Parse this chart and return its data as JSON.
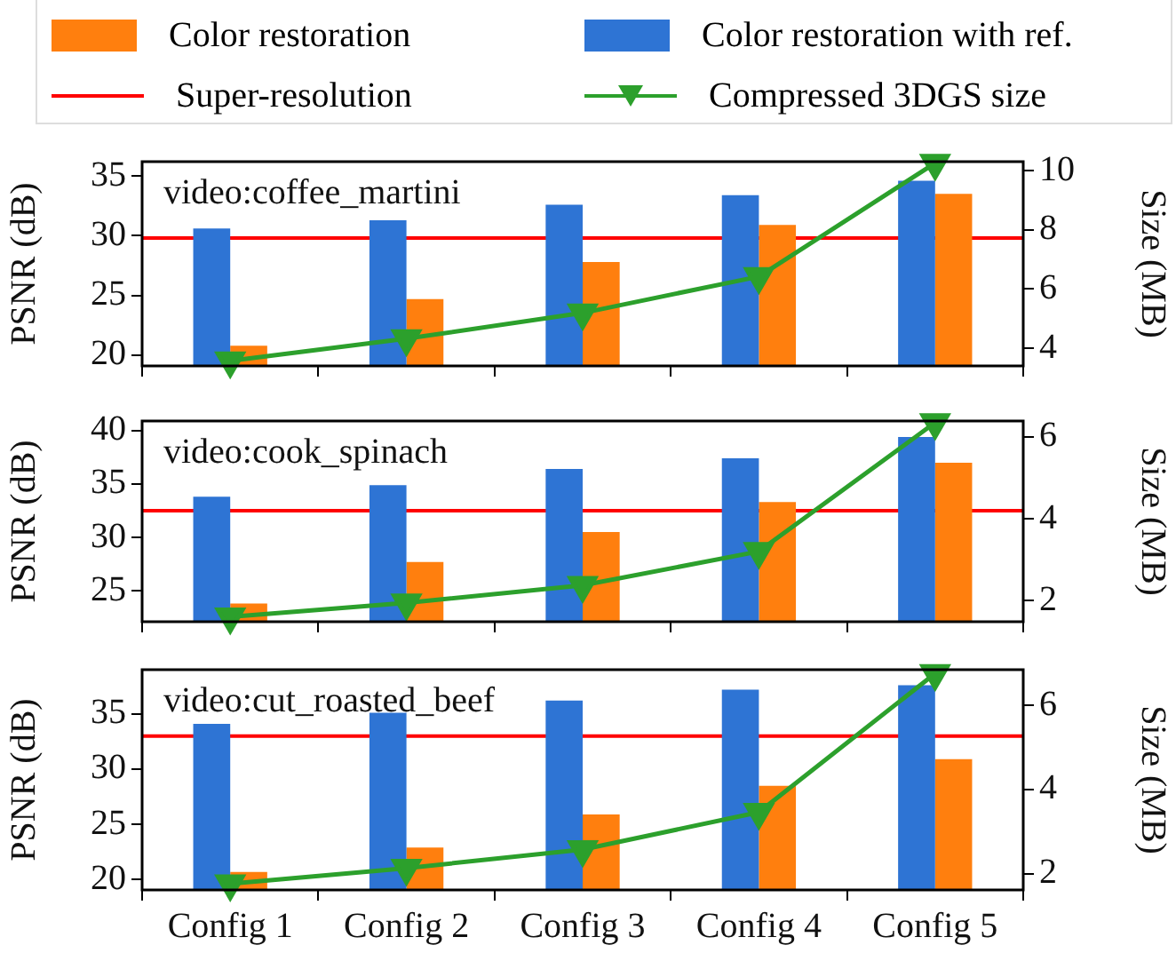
{
  "chart_data": [
    {
      "type": "bar",
      "categories": [
        null,
        null,
        null,
        null,
        null
      ],
      "ylabel": "PSNR (dB)",
      "y2label": "Size (MB)",
      "annotations": [
        "video:coffee_martini"
      ],
      "series": [
        {
          "name": "Color restoration",
          "color": "#ff7f0e",
          "values": [
            20.8,
            24.7,
            27.8,
            30.9,
            33.5
          ]
        },
        {
          "name": "Color restoration with ref.",
          "color": "#2e74d4",
          "values": [
            30.6,
            31.3,
            32.6,
            33.4,
            34.6
          ]
        },
        {
          "name": "Compressed 3DGS size",
          "type": "line",
          "axis": "y2",
          "color": "#2ca02c",
          "marker": "triangle",
          "values": [
            3.57,
            4.32,
            5.19,
            6.42,
            10.25
          ]
        }
      ],
      "ref_lines": [
        {
          "axis": "y",
          "value": 29.8,
          "label": "Super-resolution",
          "color": "#ff0000"
        }
      ],
      "ylim": [
        19.1,
        36.2
      ],
      "yticks": [
        20,
        25,
        30,
        35
      ],
      "y2lim": [
        3.4,
        10.3
      ],
      "y2ticks": [
        4,
        6,
        8,
        10
      ],
      "tick_labels": "y",
      "legend": "top",
      "grid": false
    },
    {
      "type": "bar",
      "categories": [
        null,
        null,
        null,
        null,
        null
      ],
      "ylabel": "PSNR (dB)",
      "y2label": "Size (MB)",
      "annotations": [
        "video:cook_spinach"
      ],
      "series": [
        {
          "color": "#ff7f0e",
          "values": [
            23.8,
            27.7,
            30.5,
            33.3,
            37.0
          ]
        },
        {
          "color": "#2e74d4",
          "values": [
            33.8,
            34.9,
            36.4,
            37.4,
            39.4
          ]
        },
        {
          "type": "line",
          "axis": "y2",
          "color": "#2ca02c",
          "marker": "triangle",
          "values": [
            1.6,
            1.94,
            2.37,
            3.2,
            6.35
          ]
        }
      ],
      "ref_lines": [
        {
          "axis": "y",
          "value": 32.5,
          "color": "#ff0000"
        }
      ],
      "ylim": [
        22.1,
        40.9
      ],
      "yticks": [
        25,
        30,
        35,
        40
      ],
      "y2lim": [
        1.48,
        6.39
      ],
      "y2ticks": [
        2,
        4,
        6
      ],
      "tick_labels": "y",
      "grid": false
    },
    {
      "type": "bar",
      "categories": [
        "Config 1",
        "Config 2",
        "Config 3",
        "Config 4",
        "Config 5"
      ],
      "ylabel": "PSNR (dB)",
      "y2label": "Size (MB)",
      "annotations": [
        "video:cut_roasted_beef"
      ],
      "series": [
        {
          "color": "#ff7f0e",
          "values": [
            20.7,
            22.9,
            25.9,
            28.5,
            30.9
          ]
        },
        {
          "color": "#2e74d4",
          "values": [
            34.1,
            35.1,
            36.2,
            37.2,
            37.6
          ]
        },
        {
          "type": "line",
          "axis": "y2",
          "color": "#2ca02c",
          "marker": "triangle",
          "values": [
            1.76,
            2.13,
            2.57,
            3.46,
            6.76
          ]
        }
      ],
      "ref_lines": [
        {
          "axis": "y",
          "value": 33.0,
          "color": "#ff0000"
        }
      ],
      "ylim": [
        19.07,
        39.0
      ],
      "yticks": [
        20,
        25,
        30,
        35
      ],
      "y2lim": [
        1.61,
        6.85
      ],
      "y2ticks": [
        2,
        4,
        6
      ],
      "grid": false
    }
  ]
}
